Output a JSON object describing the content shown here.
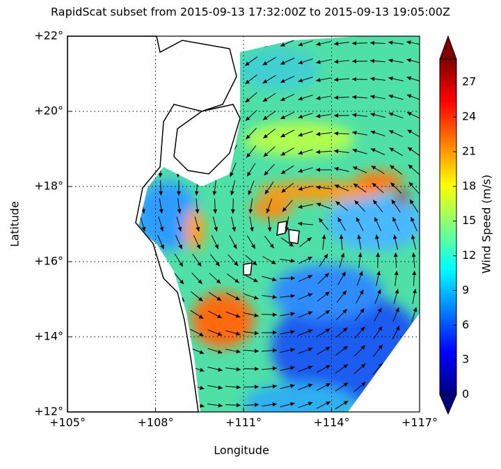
{
  "chart_data": {
    "type": "map",
    "title": "RapidScat subset from 2015-09-13 17:32:00Z to 2015-09-13 19:05:00Z",
    "xlabel": "Longitude",
    "ylabel": "Latitude",
    "xlim": [
      105,
      117
    ],
    "ylim": [
      12,
      22
    ],
    "xticks": [
      {
        "value": 105,
        "label": "+105°"
      },
      {
        "value": 108,
        "label": "+108°"
      },
      {
        "value": 111,
        "label": "+111°"
      },
      {
        "value": 114,
        "label": "+114°"
      },
      {
        "value": 117,
        "label": "+117°"
      }
    ],
    "yticks": [
      {
        "value": 12,
        "label": "+12°"
      },
      {
        "value": 14,
        "label": "+14°"
      },
      {
        "value": 16,
        "label": "+16°"
      },
      {
        "value": 18,
        "label": "+18°"
      },
      {
        "value": 20,
        "label": "+20°"
      },
      {
        "value": 22,
        "label": "+22°"
      }
    ],
    "grid": true,
    "colorbar": {
      "label": "Wind Speed (m/s)",
      "clim": [
        0,
        29
      ],
      "ticks": [
        0,
        3,
        6,
        9,
        12,
        15,
        18,
        21,
        24,
        27
      ],
      "colors": [
        "#00007f",
        "#0000ff",
        "#007fff",
        "#00ffff",
        "#7fff7f",
        "#ffff00",
        "#ff7f00",
        "#ff0000",
        "#7f0000"
      ]
    }
  }
}
